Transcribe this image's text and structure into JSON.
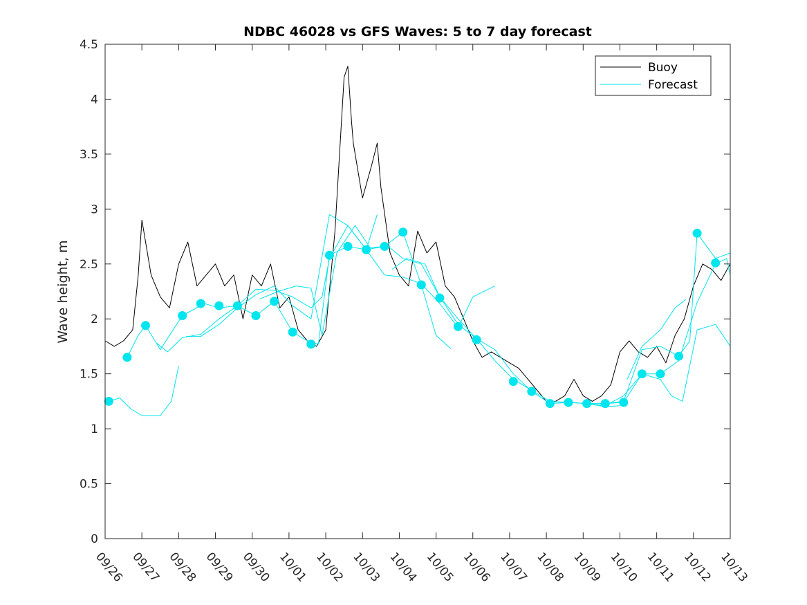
{
  "chart_data": {
    "type": "line",
    "title": "NDBC 46028 vs GFS Waves: 5 to 7 day forecast",
    "xlabel": "",
    "ylabel": "Wave height, m",
    "xlim": [
      0,
      17
    ],
    "ylim": [
      0,
      4.5
    ],
    "yticks": [
      0,
      0.5,
      1,
      1.5,
      2,
      2.5,
      3,
      3.5,
      4,
      4.5
    ],
    "xticks": [
      0,
      1,
      2,
      3,
      4,
      5,
      6,
      7,
      8,
      9,
      10,
      11,
      12,
      13,
      14,
      15,
      16,
      17
    ],
    "xtick_labels": [
      "09/26",
      "09/27",
      "09/28",
      "09/29",
      "09/30",
      "10/01",
      "10/02",
      "10/03",
      "10/04",
      "10/05",
      "10/06",
      "10/07",
      "10/08",
      "10/09",
      "10/10",
      "10/11",
      "10/12",
      "10/13"
    ],
    "legend": {
      "position": "top-right",
      "entries": [
        "Buoy",
        "Forecast"
      ]
    },
    "colors": {
      "buoy": "#000000",
      "forecast": "#00e5ee",
      "axis": "#262626"
    },
    "series": [
      {
        "name": "Buoy",
        "x": [
          0,
          0.25,
          0.5,
          0.75,
          0.9,
          1.0,
          1.25,
          1.5,
          1.75,
          2.0,
          2.25,
          2.5,
          2.75,
          3.0,
          3.25,
          3.5,
          3.75,
          4.0,
          4.25,
          4.5,
          4.75,
          5.0,
          5.25,
          5.5,
          5.75,
          6.0,
          6.25,
          6.5,
          6.6,
          6.7,
          6.75,
          7.0,
          7.25,
          7.4,
          7.5,
          7.75,
          8.0,
          8.25,
          8.5,
          8.75,
          9.0,
          9.25,
          9.5,
          9.75,
          10.0,
          10.25,
          10.5,
          10.75,
          11.0,
          11.25,
          11.5,
          11.75,
          12.0,
          12.25,
          12.5,
          12.75,
          13.0,
          13.25,
          13.5,
          13.75,
          14.0,
          14.25,
          14.5,
          14.75,
          15.0,
          15.25,
          15.5,
          15.75,
          16.0,
          16.25,
          16.5,
          16.75,
          17.0
        ],
        "y": [
          1.8,
          1.75,
          1.8,
          1.9,
          2.4,
          2.9,
          2.4,
          2.2,
          2.1,
          2.5,
          2.7,
          2.3,
          2.4,
          2.5,
          2.3,
          2.4,
          2.0,
          2.4,
          2.3,
          2.5,
          2.1,
          2.2,
          1.9,
          1.8,
          1.75,
          1.9,
          2.8,
          4.2,
          4.3,
          3.8,
          3.6,
          3.1,
          3.4,
          3.6,
          3.2,
          2.6,
          2.4,
          2.3,
          2.8,
          2.6,
          2.7,
          2.3,
          2.2,
          2.0,
          1.8,
          1.65,
          1.7,
          1.65,
          1.6,
          1.55,
          1.45,
          1.35,
          1.25,
          1.25,
          1.3,
          1.45,
          1.3,
          1.25,
          1.3,
          1.4,
          1.7,
          1.8,
          1.7,
          1.65,
          1.75,
          1.6,
          1.85,
          2.0,
          2.3,
          2.5,
          2.45,
          2.35,
          2.5
        ]
      },
      {
        "name": "Forecast run 1",
        "x": [
          0.1,
          0.4,
          0.7,
          1.0,
          1.5,
          1.8,
          2.0
        ],
        "y": [
          1.25,
          1.28,
          1.18,
          1.12,
          1.12,
          1.25,
          1.57
        ]
      },
      {
        "name": "Forecast run 2",
        "x": [
          0.6,
          0.9,
          1.1,
          1.5,
          2.1,
          2.7,
          3.1,
          3.6,
          4.1,
          4.6,
          5.1,
          5.5,
          5.8,
          6.1,
          6.6,
          7.1,
          7.4
        ],
        "y": [
          1.65,
          1.85,
          1.94,
          1.72,
          2.03,
          2.14,
          2.1,
          2.12,
          2.03,
          2.16,
          1.88,
          1.8,
          1.77,
          2.58,
          2.66,
          2.63,
          2.95
        ]
      },
      {
        "name": "Forecast run 3",
        "x": [
          1.4,
          1.7,
          2.1,
          2.6,
          3.1,
          3.6,
          4.1,
          4.6,
          5.1,
          5.6,
          5.9,
          6.1,
          6.6,
          7.1,
          7.6,
          8.1,
          8.6,
          9.0,
          9.4
        ],
        "y": [
          1.78,
          1.7,
          1.83,
          1.86,
          2.0,
          2.12,
          2.27,
          2.26,
          2.2,
          2.1,
          2.2,
          2.55,
          2.85,
          2.63,
          2.66,
          2.79,
          2.31,
          1.85,
          1.73
        ]
      },
      {
        "name": "Forecast run 4",
        "x": [
          2.2,
          2.6,
          3.1,
          3.6,
          4.1,
          4.6,
          5.1,
          5.6,
          6.1,
          6.6,
          7.1,
          7.6,
          8.1,
          8.6,
          9.1,
          9.6,
          10.0,
          10.6
        ],
        "y": [
          1.84,
          1.84,
          1.95,
          2.1,
          2.22,
          2.3,
          2.12,
          2.0,
          2.95,
          2.85,
          2.63,
          2.4,
          2.38,
          2.32,
          2.14,
          1.92,
          2.2,
          2.3
        ]
      },
      {
        "name": "Forecast run 5",
        "x": [
          4.2,
          4.7,
          5.2,
          5.6,
          5.9,
          6.3,
          6.8,
          7.2,
          7.7,
          8.1,
          8.6,
          9.1,
          9.6,
          10.1,
          10.6,
          11.1,
          11.6,
          12.1,
          12.6,
          13.1,
          13.6,
          14.0
        ],
        "y": [
          2.18,
          2.25,
          2.3,
          2.28,
          1.85,
          2.6,
          2.85,
          2.65,
          2.66,
          2.55,
          2.5,
          2.2,
          1.95,
          1.82,
          1.62,
          1.45,
          1.35,
          1.25,
          1.24,
          1.23,
          1.2,
          1.21
        ]
      },
      {
        "name": "Forecast run 6",
        "x": [
          7.8,
          8.2,
          8.7,
          9.1,
          9.6,
          10.1,
          10.6,
          11.1,
          11.6,
          12.1,
          12.6,
          13.1,
          13.6,
          14.1,
          14.6,
          15.1,
          15.6,
          15.9,
          16.1,
          16.6,
          17.0
        ],
        "y": [
          2.45,
          2.55,
          2.5,
          2.2,
          2.0,
          1.82,
          1.72,
          1.5,
          1.34,
          1.23,
          1.24,
          1.23,
          1.23,
          1.25,
          1.72,
          1.75,
          1.66,
          1.8,
          2.78,
          2.55,
          2.6
        ]
      },
      {
        "name": "Forecast run 7",
        "x": [
          12.1,
          12.6,
          13.1,
          13.6,
          14.1,
          14.6,
          15.1,
          15.4,
          15.7,
          16.1,
          16.6,
          17.0
        ],
        "y": [
          1.23,
          1.24,
          1.23,
          1.21,
          1.3,
          1.5,
          1.45,
          1.3,
          1.25,
          1.9,
          1.95,
          1.75
        ]
      },
      {
        "name": "Forecast run 8",
        "x": [
          13.6,
          14.1,
          14.6,
          15.1,
          15.6,
          16.1,
          16.6,
          16.9,
          17.0
        ],
        "y": [
          1.23,
          1.24,
          1.5,
          1.5,
          1.62,
          2.15,
          2.5,
          2.55,
          2.4
        ]
      },
      {
        "name": "Forecast run 9",
        "x": [
          14.2,
          14.6,
          15.1,
          15.5,
          15.8
        ],
        "y": [
          1.45,
          1.75,
          1.9,
          2.1,
          2.18
        ]
      }
    ],
    "forecast_markers": {
      "x": [
        0.1,
        0.6,
        1.1,
        2.1,
        2.6,
        3.1,
        3.6,
        4.1,
        4.6,
        5.1,
        5.6,
        6.1,
        6.6,
        7.1,
        7.6,
        8.1,
        8.6,
        9.1,
        9.6,
        10.1,
        11.1,
        11.6,
        12.1,
        12.6,
        13.1,
        13.6,
        14.1,
        14.6,
        15.1,
        15.6,
        16.1,
        16.6
      ],
      "y": [
        1.25,
        1.65,
        1.94,
        2.03,
        2.14,
        2.12,
        2.12,
        2.03,
        2.16,
        1.88,
        1.77,
        2.58,
        2.66,
        2.63,
        2.66,
        2.79,
        2.31,
        2.19,
        1.93,
        1.81,
        1.43,
        1.34,
        1.23,
        1.24,
        1.23,
        1.23,
        1.24,
        1.5,
        1.5,
        1.66,
        2.78,
        2.51
      ]
    }
  }
}
